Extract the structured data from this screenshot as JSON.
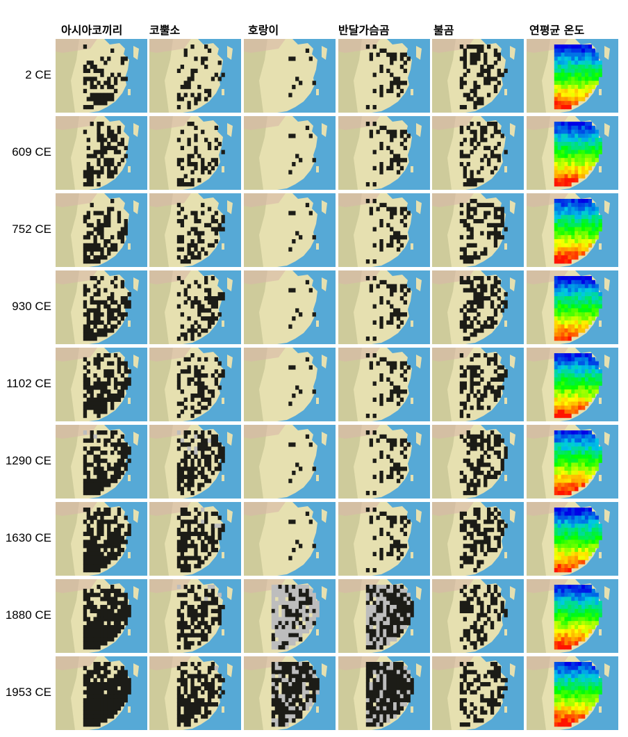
{
  "columns": [
    {
      "label": "아시아코끼리",
      "key": "asian-elephant"
    },
    {
      "label": "코뿔소",
      "key": "rhinoceros"
    },
    {
      "label": "호랑이",
      "key": "tiger"
    },
    {
      "label": "반달가슴곰",
      "key": "asiatic-black-bear"
    },
    {
      "label": "불곰",
      "key": "brown-bear"
    },
    {
      "label": "연평균 온도",
      "key": "mean-annual-temperature"
    }
  ],
  "rows": [
    {
      "label": "2 CE"
    },
    {
      "label": "609 CE"
    },
    {
      "label": "752 CE"
    },
    {
      "label": "930 CE"
    },
    {
      "label": "1102 CE"
    },
    {
      "label": "1290 CE"
    },
    {
      "label": "1630 CE"
    },
    {
      "label": "1880 CE"
    },
    {
      "label": "1953 CE"
    }
  ],
  "colors": {
    "ocean": "#56a9d6",
    "land": "#e6e0b0",
    "range_present": "#1c1c17",
    "range_lost": "#bdbdbd",
    "temp_cold": "#1020d0",
    "temp_hot": "#e01010"
  }
}
